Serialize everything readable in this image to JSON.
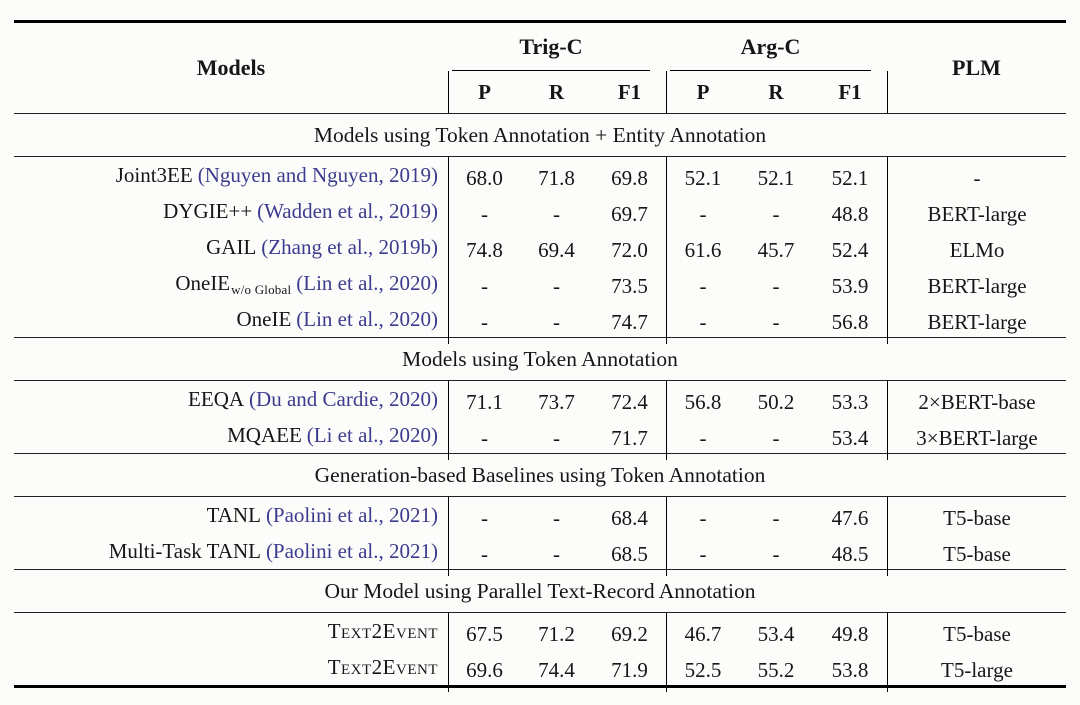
{
  "header": {
    "models": "Models",
    "trig": "Trig-C",
    "arg": "Arg-C",
    "plm": "PLM",
    "subcols": [
      "P",
      "R",
      "F1",
      "P",
      "R",
      "F1"
    ]
  },
  "sections": [
    {
      "title": "Models using Token Annotation + Entity Annotation",
      "rows": [
        {
          "model": "Joint3EE",
          "model_sub": "",
          "citation": "(Nguyen and Nguyen, 2019)",
          "trig": [
            "68.0",
            "71.8",
            "69.8"
          ],
          "arg": [
            "52.1",
            "52.1",
            "52.1"
          ],
          "plm": "-"
        },
        {
          "model": "DYGIE++",
          "model_sub": "",
          "citation": "(Wadden et al., 2019)",
          "trig": [
            "-",
            "-",
            "69.7"
          ],
          "arg": [
            "-",
            "-",
            "48.8"
          ],
          "plm": "BERT-large"
        },
        {
          "model": "GAIL",
          "model_sub": "",
          "citation": "(Zhang et al., 2019b)",
          "trig": [
            "74.8",
            "69.4",
            "72.0"
          ],
          "arg": [
            "61.6",
            "45.7",
            "52.4"
          ],
          "plm": "ELMo"
        },
        {
          "model": "OneIE",
          "model_sub": "w/o Global",
          "citation": "(Lin et al., 2020)",
          "trig": [
            "-",
            "-",
            "73.5"
          ],
          "arg": [
            "-",
            "-",
            "53.9"
          ],
          "plm": "BERT-large"
        },
        {
          "model": "OneIE",
          "model_sub": "",
          "citation": "(Lin et al., 2020)",
          "trig": [
            "-",
            "-",
            "74.7"
          ],
          "arg": [
            "-",
            "-",
            "56.8"
          ],
          "plm": "BERT-large"
        }
      ]
    },
    {
      "title": "Models using Token Annotation",
      "rows": [
        {
          "model": "EEQA",
          "model_sub": "",
          "citation": "(Du and Cardie, 2020)",
          "trig": [
            "71.1",
            "73.7",
            "72.4"
          ],
          "arg": [
            "56.8",
            "50.2",
            "53.3"
          ],
          "plm": "2×BERT-base"
        },
        {
          "model": "MQAEE",
          "model_sub": "",
          "citation": "(Li et al., 2020)",
          "trig": [
            "-",
            "-",
            "71.7"
          ],
          "arg": [
            "-",
            "-",
            "53.4"
          ],
          "plm": "3×BERT-large"
        }
      ]
    },
    {
      "title": "Generation-based Baselines using Token Annotation",
      "rows": [
        {
          "model": "TANL",
          "model_sub": "",
          "citation": "(Paolini et al., 2021)",
          "trig": [
            "-",
            "-",
            "68.4"
          ],
          "arg": [
            "-",
            "-",
            "47.6"
          ],
          "plm": "T5-base"
        },
        {
          "model": "Multi-Task TANL",
          "model_sub": "",
          "citation": "(Paolini et al., 2021)",
          "trig": [
            "-",
            "-",
            "68.5"
          ],
          "arg": [
            "-",
            "-",
            "48.5"
          ],
          "plm": "T5-base"
        }
      ]
    },
    {
      "title": "Our Model using Parallel Text-Record Annotation",
      "rows": [
        {
          "model": "Text2Event",
          "model_sub": "",
          "citation": "",
          "trig": [
            "67.5",
            "71.2",
            "69.2"
          ],
          "arg": [
            "46.7",
            "53.4",
            "49.8"
          ],
          "plm": "T5-base"
        },
        {
          "model": "Text2Event",
          "model_sub": "",
          "citation": "",
          "trig": [
            "69.6",
            "74.4",
            "71.9"
          ],
          "arg": [
            "52.5",
            "55.2",
            "53.8"
          ],
          "plm": "T5-large"
        }
      ]
    }
  ]
}
